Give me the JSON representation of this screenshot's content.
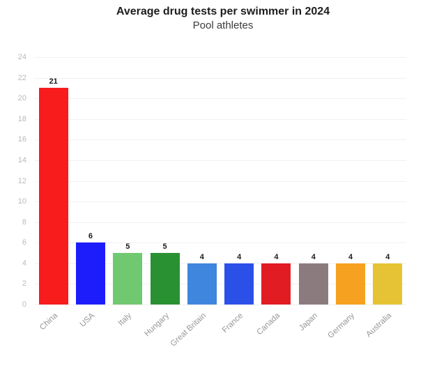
{
  "header": {
    "title": "Average drug tests per swimmer in 2024",
    "subtitle": "Pool athletes"
  },
  "chart_data": {
    "type": "bar",
    "title": "Average drug tests per swimmer in 2024",
    "subtitle": "Pool athletes",
    "categories": [
      "China",
      "USA",
      "Italy",
      "Hungary",
      "Great Britain",
      "France",
      "Canada",
      "Japan",
      "Germany",
      "Australia"
    ],
    "values": [
      21,
      6,
      5,
      5,
      4,
      4,
      4,
      4,
      4,
      4
    ],
    "bar_colors": [
      "#f81c1c",
      "#1d1dfb",
      "#70c970",
      "#2a9132",
      "#3e86de",
      "#2b50e8",
      "#e11d23",
      "#8c7b7e",
      "#f6a11f",
      "#e6c334"
    ],
    "xlabel": "",
    "ylabel": "",
    "ylim": [
      0,
      24
    ],
    "ytick_step": 2,
    "yticks": [
      0,
      2,
      4,
      6,
      8,
      10,
      12,
      14,
      16,
      18,
      20,
      22,
      24
    ],
    "grid": true,
    "legend": false,
    "value_labels_shown": true,
    "colors": {
      "background": "#ffffff",
      "grid": "#f0f0f0",
      "y_tick_text": "#b9b9b9",
      "x_tick_text": "#979797",
      "value_label_text": "#1a1a1a"
    }
  }
}
